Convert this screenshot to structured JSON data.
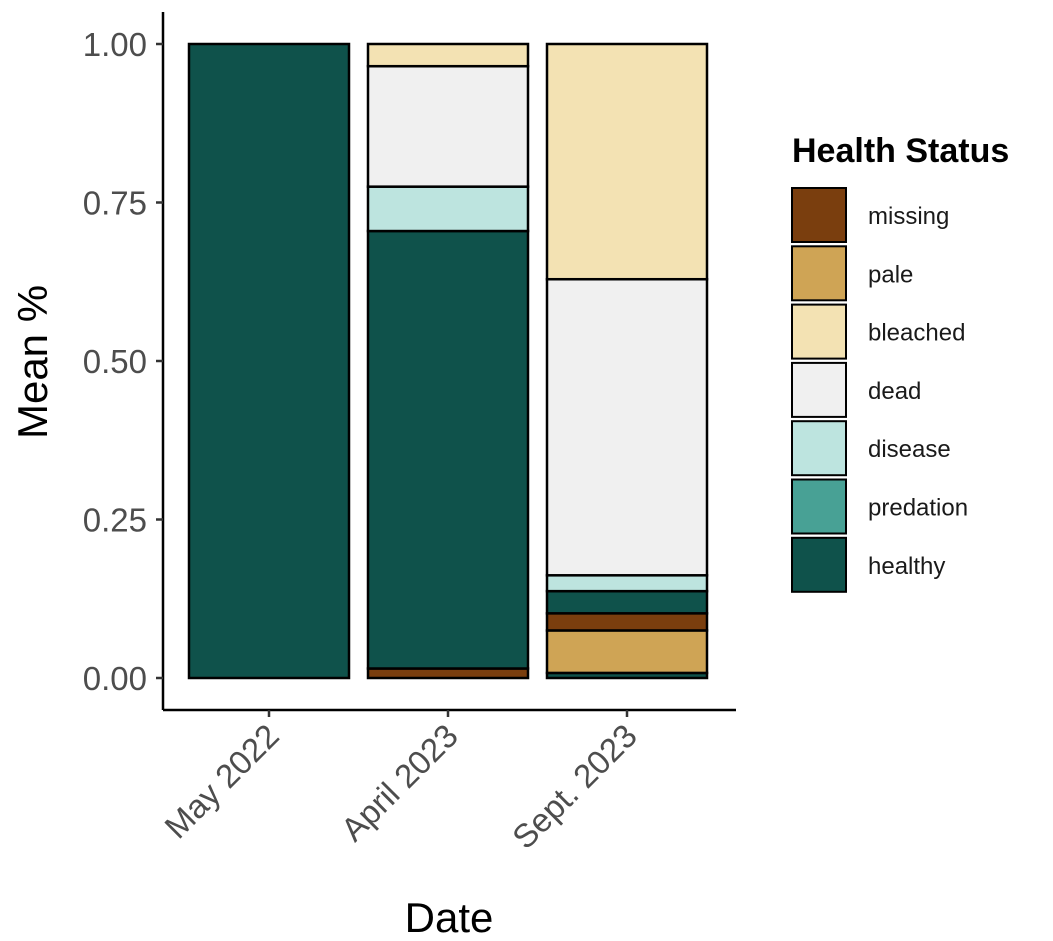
{
  "chart_data": {
    "type": "bar",
    "stacked": true,
    "categories": [
      "May 2022",
      "April 2023",
      "Sept. 2023"
    ],
    "xlabel": "Date",
    "ylabel": "Mean %",
    "ylim": [
      0,
      1
    ],
    "yticks": [
      "0.00",
      "0.25",
      "0.50",
      "0.75",
      "1.00"
    ],
    "ytick_values": [
      0,
      0.25,
      0.5,
      0.75,
      1.0
    ],
    "grid": false,
    "legend": {
      "title": "Health Status",
      "position": "right",
      "entries": [
        "missing",
        "pale",
        "bleached",
        "dead",
        "disease",
        "predation",
        "healthy"
      ]
    },
    "colors": {
      "missing": "#7a3e0e",
      "pale": "#cfa455",
      "bleached": "#f3e2b3",
      "dead": "#f0f0f0",
      "disease": "#bde4df",
      "predation": "#48a195",
      "healthy": "#0f524b"
    },
    "stack_order": [
      "missing",
      "pale",
      "bleached",
      "dead",
      "disease",
      "predation",
      "healthy"
    ],
    "bars": [
      [
        {
          "status": "healthy",
          "value": 1.0
        }
      ],
      [
        {
          "status": "missing",
          "value": 0.015
        },
        {
          "status": "healthy",
          "value": 0.69
        },
        {
          "status": "disease",
          "value": 0.07
        },
        {
          "status": "dead",
          "value": 0.19
        },
        {
          "status": "bleached",
          "value": 0.035
        }
      ],
      [
        {
          "status": "healthy",
          "value": 0.008
        },
        {
          "status": "pale",
          "value": 0.067
        },
        {
          "status": "missing",
          "value": 0.027
        },
        {
          "status": "healthy",
          "value": 0.035
        },
        {
          "status": "disease",
          "value": 0.025
        },
        {
          "status": "dead",
          "value": 0.467
        },
        {
          "status": "bleached",
          "value": 0.371
        }
      ]
    ]
  }
}
